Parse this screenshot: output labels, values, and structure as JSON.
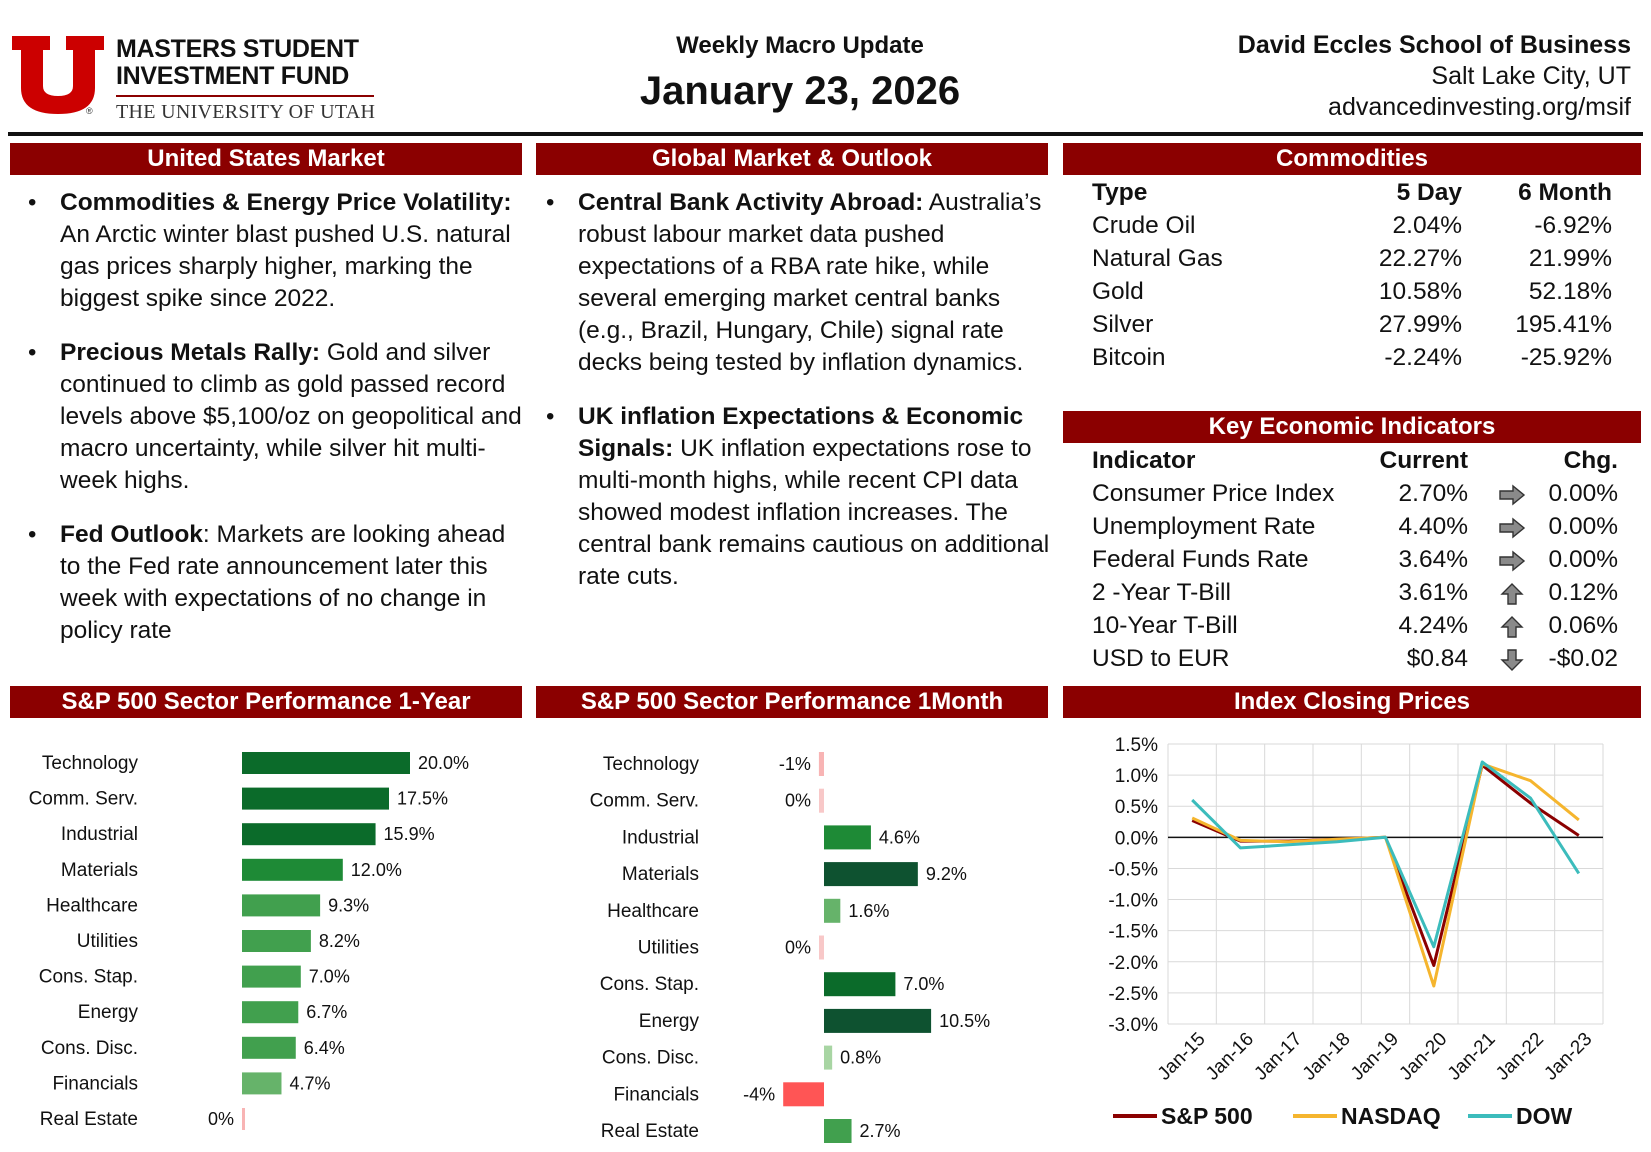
{
  "header": {
    "logo_line1": "MASTERS STUDENT",
    "logo_line2": "INVESTMENT FUND",
    "logo_line3": "THE UNIVERSITY OF UTAH",
    "subtitle": "Weekly Macro Update",
    "date": "January 23, 2026",
    "school": "David Eccles School of Business",
    "city": "Salt Lake City, UT",
    "website": "advancedinvesting.org/msif",
    "colors": {
      "brand_red": "#8b0000",
      "logo_red": "#cc0000"
    }
  },
  "us_market": {
    "title": "United States Market",
    "bullets": [
      {
        "lead": "Commodities & Energy Price Volatility:",
        "text": " An Arctic winter blast pushed U.S. natural gas prices sharply higher, marking the biggest spike since 2022."
      },
      {
        "lead": "Precious Metals Rally:",
        "text": " Gold and silver continued to climb as gold passed record levels above $5,100/oz on geopolitical and macro uncertainty, while silver hit multi-week highs."
      },
      {
        "lead": "Fed Outlook",
        "text": ": Markets are looking ahead to the Fed rate announcement later this week with expectations of no change in policy rate"
      }
    ]
  },
  "global_market": {
    "title": "Global Market & Outlook",
    "bullets": [
      {
        "lead": "Central Bank Activity Abroad:",
        "text": " Australia’s robust labour market data pushed expectations of a RBA rate hike, while several emerging market central banks (e.g., Brazil, Hungary, Chile) signal rate decks being tested by inflation dynamics."
      },
      {
        "lead": "UK inflation Expectations & Economic Signals:",
        "text": " UK inflation expectations rose to multi-month highs, while recent CPI data showed modest inflation increases.  The central bank remains cautious on additional rate cuts."
      }
    ]
  },
  "commodities": {
    "title": "Commodities",
    "headers": [
      "Type",
      "5 Day",
      "6 Month"
    ],
    "rows": [
      [
        "Crude Oil",
        "2.04%",
        "-6.92%"
      ],
      [
        "Natural Gas",
        "22.27%",
        "21.99%"
      ],
      [
        "Gold",
        "10.58%",
        "52.18%"
      ],
      [
        "Silver",
        "27.99%",
        "195.41%"
      ],
      [
        "Bitcoin",
        "-2.24%",
        "-25.92%"
      ]
    ]
  },
  "indicators": {
    "title": "Key Economic Indicators",
    "headers": [
      "Indicator",
      "Current",
      "Chg."
    ],
    "rows": [
      {
        "name": "Consumer Price Index",
        "current": "2.70%",
        "arrow": "right-arrow-icon",
        "change": "0.00%"
      },
      {
        "name": "Unemployment Rate",
        "current": "4.40%",
        "arrow": "right-arrow-icon",
        "change": "0.00%"
      },
      {
        "name": "Federal Funds Rate",
        "current": "3.64%",
        "arrow": "right-arrow-icon",
        "change": "0.00%"
      },
      {
        "name": "2 -Year T-Bill",
        "current": "3.61%",
        "arrow": "up-arrow-icon",
        "change": "0.12%"
      },
      {
        "name": "10-Year T-Bill",
        "current": "4.24%",
        "arrow": "up-arrow-icon",
        "change": "0.06%"
      },
      {
        "name": "USD to EUR",
        "current": "$0.84",
        "arrow": "down-arrow-icon",
        "change": "-$0.02"
      }
    ]
  },
  "chart_data": [
    {
      "type": "bar",
      "orientation": "horizontal",
      "title": "S&P 500 Sector Performance 1-Year",
      "categories": [
        "Technology",
        "Comm. Serv.",
        "Industrial",
        "Materials",
        "Healthcare",
        "Utilities",
        "Cons. Stap.",
        "Energy",
        "Cons. Disc.",
        "Financials",
        "Real Estate"
      ],
      "values": [
        20.0,
        17.5,
        15.9,
        12.0,
        9.3,
        8.2,
        7.0,
        6.7,
        6.4,
        4.7,
        0
      ],
      "labels": [
        "20.0%",
        "17.5%",
        "15.9%",
        "12.0%",
        "9.3%",
        "8.2%",
        "7.0%",
        "6.7%",
        "6.4%",
        "4.7%",
        "0%"
      ],
      "colors": [
        "#0b6b2a",
        "#0b6b2a",
        "#0b6b2a",
        "#1e8a36",
        "#41a04e",
        "#41a04e",
        "#41a04e",
        "#41a04e",
        "#41a04e",
        "#66b36a",
        "#f8b4b4"
      ]
    },
    {
      "type": "bar",
      "orientation": "horizontal",
      "title": "S&P 500 Sector Performance 1Month",
      "categories": [
        "Technology",
        "Comm. Serv.",
        "Industrial",
        "Materials",
        "Healthcare",
        "Utilities",
        "Cons. Stap.",
        "Energy",
        "Cons. Disc.",
        "Financials",
        "Real Estate"
      ],
      "values": [
        -0.5,
        -0.2,
        4.6,
        9.2,
        1.6,
        -0.1,
        7.0,
        10.5,
        0.8,
        -4.0,
        2.7
      ],
      "labels": [
        "-1%",
        "0%",
        "4.6%",
        "9.2%",
        "1.6%",
        "0%",
        "7.0%",
        "10.5%",
        "0.8%",
        "-4%",
        "2.7%"
      ],
      "colors": [
        "#f8b4b4",
        "#f8c8c8",
        "#1e8a36",
        "#0e5230",
        "#66b36a",
        "#f8c8c8",
        "#0b6b2a",
        "#0e5230",
        "#a8d5a3",
        "#ff5555",
        "#41a04e"
      ]
    },
    {
      "type": "line",
      "title": "Index Closing Prices",
      "x": [
        "Jan-15",
        "Jan-16",
        "Jan-17",
        "Jan-18",
        "Jan-19",
        "Jan-20",
        "Jan-21",
        "Jan-22",
        "Jan-23"
      ],
      "ylim": [
        -3.0,
        1.5
      ],
      "yticks": [
        "1.5%",
        "1.0%",
        "0.5%",
        "0.0%",
        "-0.5%",
        "-1.0%",
        "-1.5%",
        "-2.0%",
        "-2.5%",
        "-3.0%"
      ],
      "grid": true,
      "legend": "bottom",
      "series": [
        {
          "name": "S&P 500",
          "color": "#8b0000",
          "values": [
            0.27,
            -0.06,
            -0.06,
            -0.03,
            0.0,
            -2.06,
            1.16,
            0.55,
            0.03
          ]
        },
        {
          "name": "NASDAQ",
          "color": "#f5b52e",
          "values": [
            0.31,
            -0.05,
            -0.07,
            -0.03,
            0.0,
            -2.39,
            1.18,
            0.91,
            0.28
          ]
        },
        {
          "name": "DOW",
          "color": "#3cbcbc",
          "values": [
            0.6,
            -0.17,
            -0.12,
            -0.07,
            0.0,
            -1.76,
            1.21,
            0.63,
            -0.58
          ]
        }
      ]
    }
  ]
}
